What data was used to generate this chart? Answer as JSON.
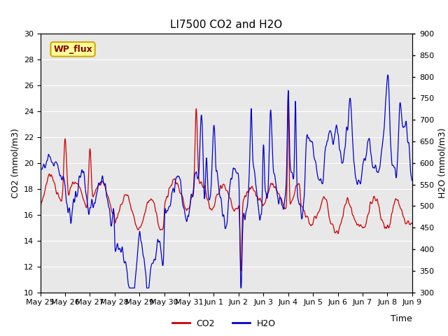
{
  "title": "LI7500 CO2 and H2O",
  "xlabel": "Time",
  "ylabel_left": "CO2 (mmol/m3)",
  "ylabel_right": "H2O (mmol/m3)",
  "ylim_left": [
    10,
    30
  ],
  "ylim_right": [
    300,
    900
  ],
  "yticks_left": [
    10,
    12,
    14,
    16,
    18,
    20,
    22,
    24,
    26,
    28,
    30
  ],
  "yticks_right": [
    300,
    350,
    400,
    450,
    500,
    550,
    600,
    650,
    700,
    750,
    800,
    850,
    900
  ],
  "outer_bg": "#ffffff",
  "plot_bg_color": "#e8e8e8",
  "grid_color": "#ffffff",
  "co2_color": "#cc0000",
  "h2o_color": "#0000cc",
  "title_fontsize": 11,
  "axis_fontsize": 9,
  "tick_fontsize": 8,
  "legend_fontsize": 9,
  "annotation_text": "WP_flux",
  "annotation_bg": "#ffff99",
  "annotation_border": "#ccaa00",
  "annotation_text_color": "#880000",
  "tick_labels": [
    "May 25",
    "May 26",
    "May 27",
    "May 28",
    "May 29",
    "May 30",
    "May 31",
    "Jun 1",
    "Jun 2",
    "Jun 3",
    "Jun 4",
    "Jun 5",
    "Jun 6",
    "Jun 7",
    "Jun 8",
    "Jun 9"
  ]
}
